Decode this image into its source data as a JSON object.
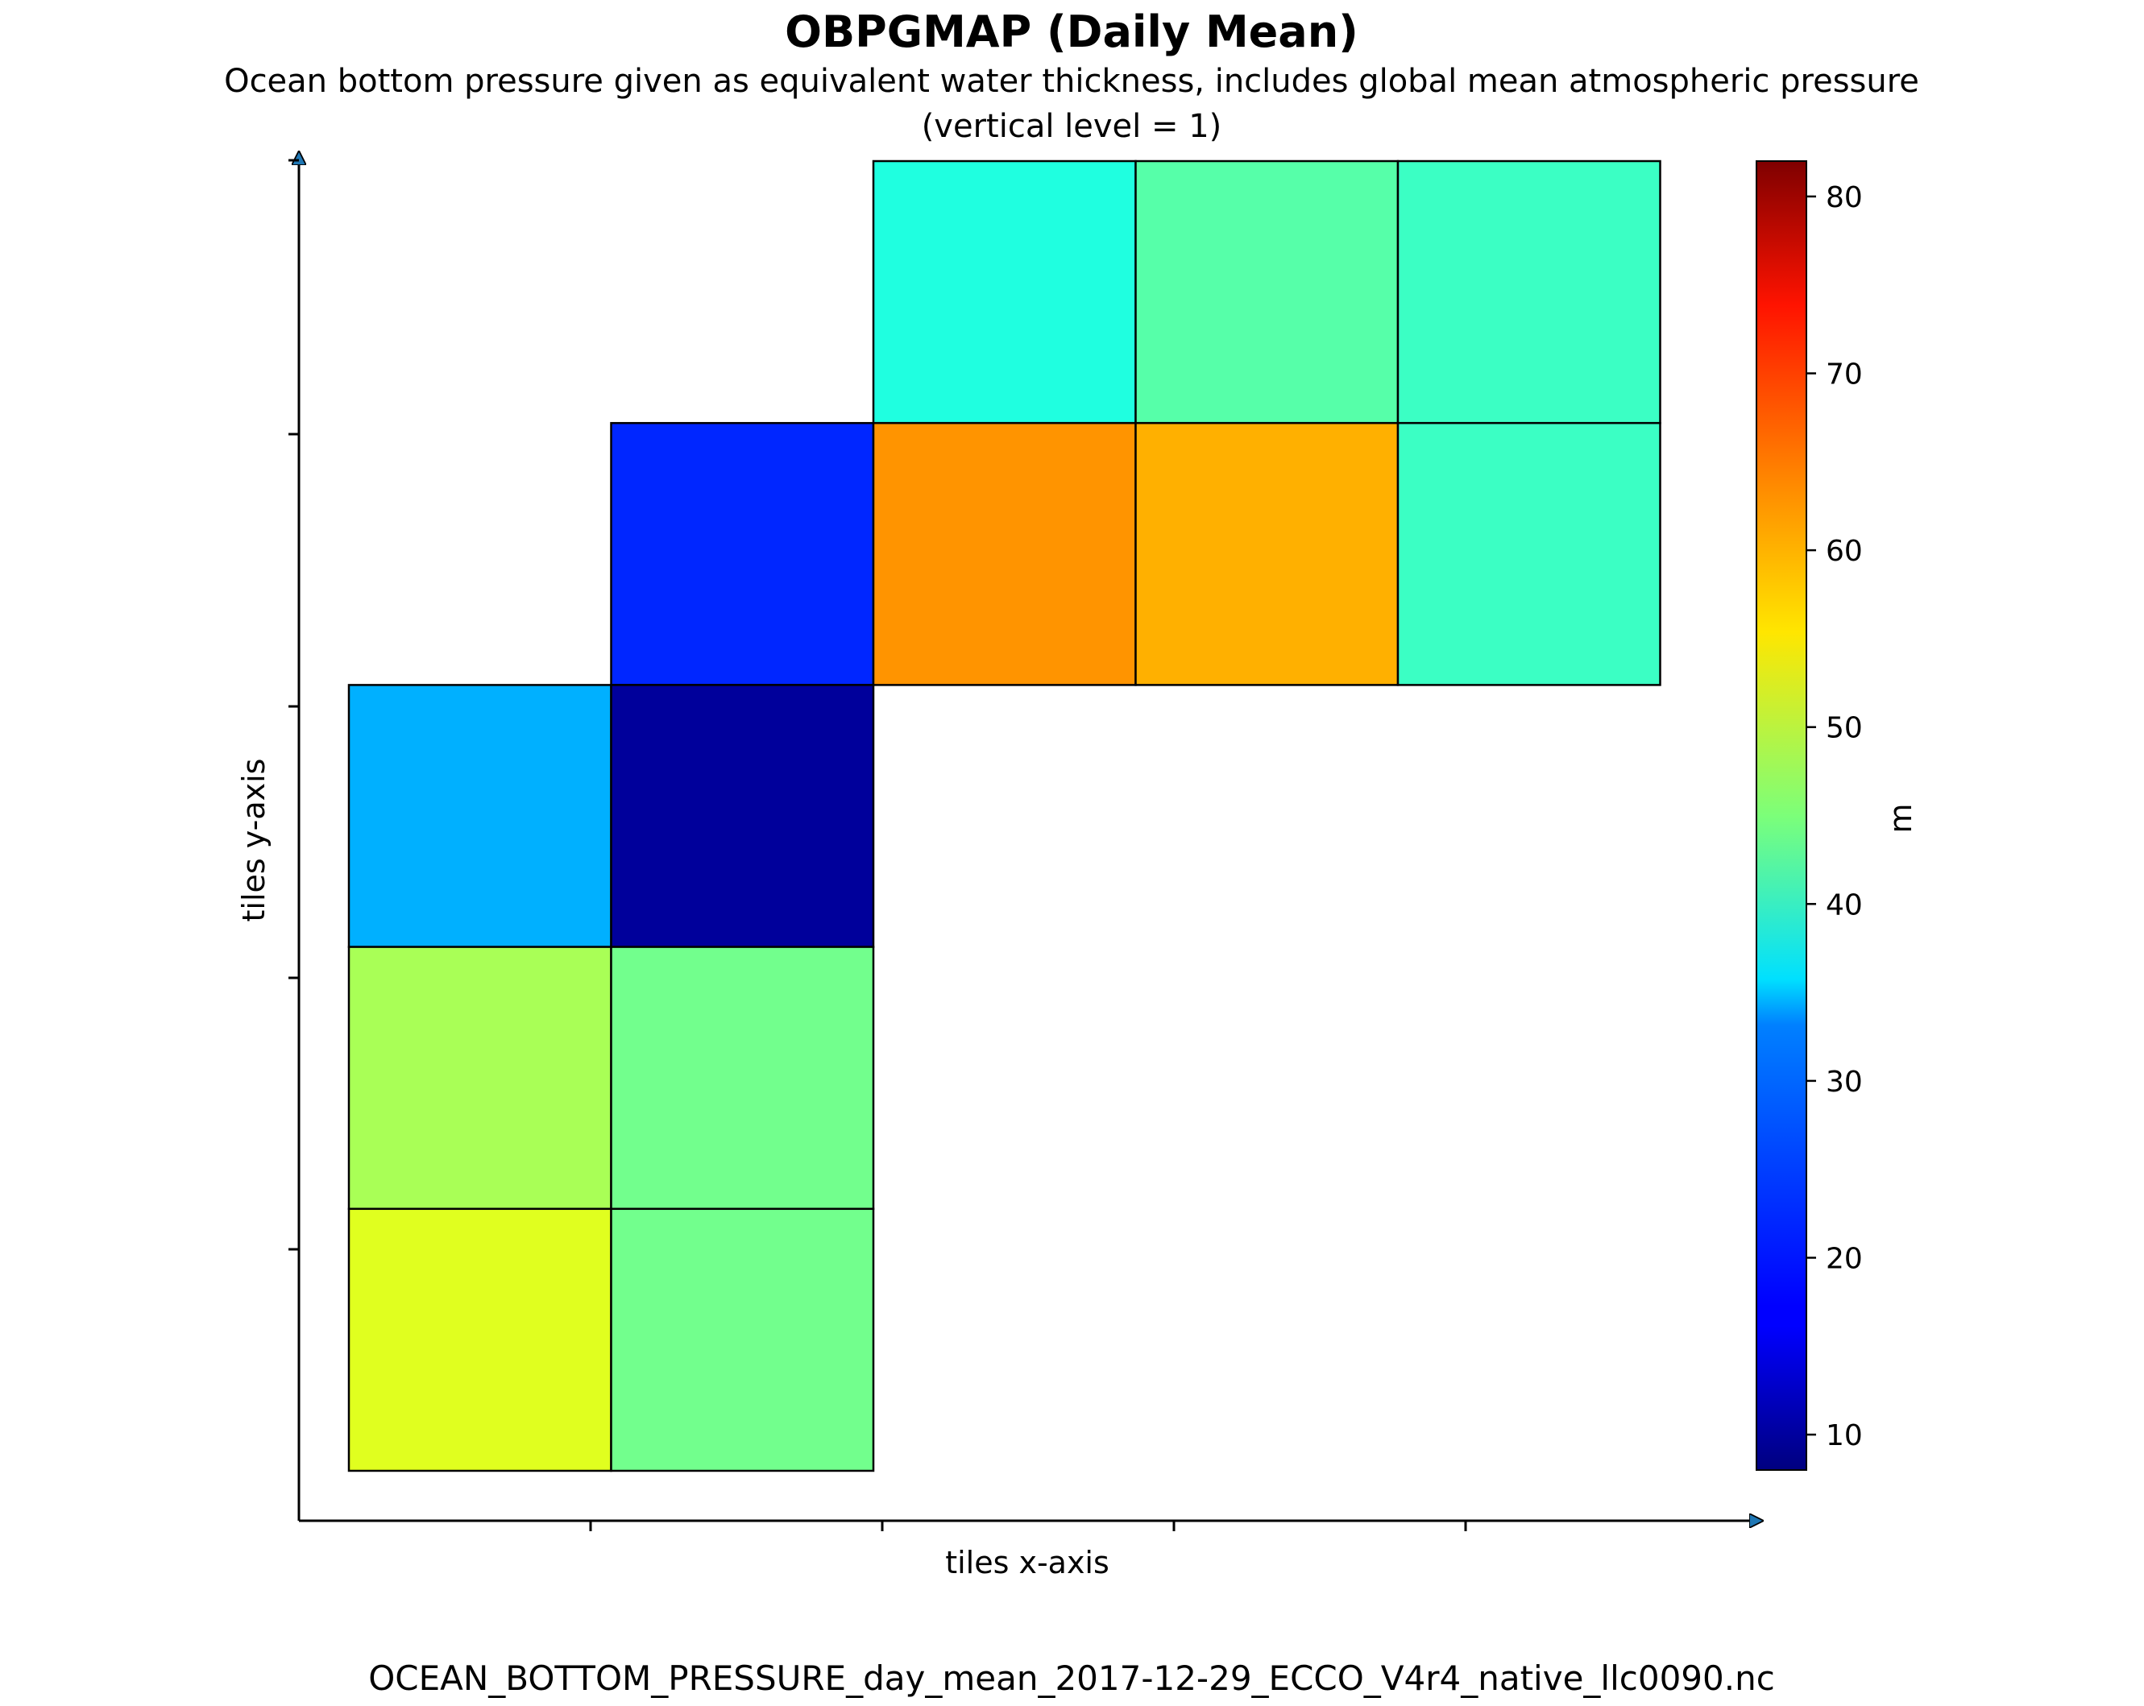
{
  "figure": {
    "title": "OBPGMAP (Daily Mean)",
    "subtitle_line1": "Ocean bottom pressure given as equivalent water thickness, includes global mean atmospheric pressure",
    "subtitle_line2": "(vertical level = 1)",
    "footer": "OCEAN_BOTTOM_PRESSURE_day_mean_2017-12-29_ECCO_V4r4_native_llc0090.nc"
  },
  "chart_data": {
    "type": "heatmap",
    "xlabel": "tiles x-axis",
    "ylabel": "tiles y-axis",
    "colorbar": {
      "label": "m",
      "colormap": "jet",
      "range": [
        8,
        82
      ],
      "ticks": [
        10,
        20,
        30,
        40,
        50,
        60,
        70,
        80
      ],
      "tick_labels": [
        "10",
        "20",
        "30",
        "40",
        "50",
        "60",
        "70",
        "80"
      ]
    },
    "land_color": "#666666",
    "grid": true,
    "tiles": [
      {
        "row": 0,
        "col": 2,
        "dominant_value": 38
      },
      {
        "row": 0,
        "col": 3,
        "dominant_value": 42
      },
      {
        "row": 0,
        "col": 4,
        "dominant_value": 40
      },
      {
        "row": 1,
        "col": 1,
        "dominant_value": 20
      },
      {
        "row": 1,
        "col": 2,
        "dominant_value": 62
      },
      {
        "row": 1,
        "col": 3,
        "dominant_value": 60
      },
      {
        "row": 1,
        "col": 4,
        "dominant_value": 40
      },
      {
        "row": 2,
        "col": 0,
        "dominant_value": 30
      },
      {
        "row": 2,
        "col": 1,
        "dominant_value": 10
      },
      {
        "row": 3,
        "col": 0,
        "dominant_value": 48
      },
      {
        "row": 3,
        "col": 1,
        "dominant_value": 44
      },
      {
        "row": 4,
        "col": 0,
        "dominant_value": 52
      },
      {
        "row": 4,
        "col": 1,
        "dominant_value": 44
      }
    ]
  }
}
